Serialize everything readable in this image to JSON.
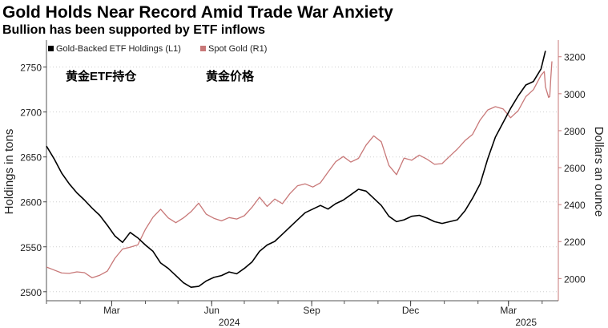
{
  "title": "Gold Holds Near Record Amid Trade War Anxiety",
  "subtitle": "Bullion has been supported by ETF inflows",
  "chart_data": {
    "type": "line",
    "title": "Gold Holds Near Record Amid Trade War Anxiety",
    "subtitle": "Bullion has been supported by ETF inflows",
    "ylabel_left": "Holdings in tons",
    "ylabel_right": "Dollars an ounce",
    "ylim_left": [
      2490,
      2780
    ],
    "ylim_right": [
      1880,
      3290
    ],
    "yticks_left": [
      2500,
      2550,
      2600,
      2650,
      2700,
      2750
    ],
    "yticks_right": [
      2000,
      2200,
      2400,
      2600,
      2800,
      3000,
      3200
    ],
    "xlim": [
      "2024-01-01",
      "2025-04-10"
    ],
    "xticks": [
      {
        "date": "2024-03-01",
        "label": "Mar"
      },
      {
        "date": "2024-06-01",
        "label": "Jun",
        "year": "2024"
      },
      {
        "date": "2024-09-01",
        "label": "Sep"
      },
      {
        "date": "2024-12-01",
        "label": "Dec"
      },
      {
        "date": "2025-03-01",
        "label": "Mar",
        "year": "2025"
      }
    ],
    "annotations": [
      "黄金ETF持仓",
      "黄金价格"
    ],
    "legend_position": "top-left",
    "series": [
      {
        "name": "Gold-Backed ETF Holdings (L1)",
        "axis": "left",
        "color": "#000000",
        "points": [
          [
            "2024-01-01",
            2662
          ],
          [
            "2024-01-08",
            2648
          ],
          [
            "2024-01-15",
            2632
          ],
          [
            "2024-01-22",
            2620
          ],
          [
            "2024-01-29",
            2610
          ],
          [
            "2024-02-05",
            2602
          ],
          [
            "2024-02-12",
            2593
          ],
          [
            "2024-02-19",
            2585
          ],
          [
            "2024-02-26",
            2574
          ],
          [
            "2024-03-04",
            2562
          ],
          [
            "2024-03-11",
            2555
          ],
          [
            "2024-03-18",
            2566
          ],
          [
            "2024-03-25",
            2560
          ],
          [
            "2024-04-01",
            2552
          ],
          [
            "2024-04-08",
            2545
          ],
          [
            "2024-04-15",
            2532
          ],
          [
            "2024-04-22",
            2526
          ],
          [
            "2024-04-29",
            2518
          ],
          [
            "2024-05-06",
            2510
          ],
          [
            "2024-05-13",
            2505
          ],
          [
            "2024-05-20",
            2506
          ],
          [
            "2024-05-27",
            2512
          ],
          [
            "2024-06-03",
            2516
          ],
          [
            "2024-06-10",
            2518
          ],
          [
            "2024-06-17",
            2522
          ],
          [
            "2024-06-24",
            2520
          ],
          [
            "2024-07-01",
            2526
          ],
          [
            "2024-07-08",
            2533
          ],
          [
            "2024-07-15",
            2545
          ],
          [
            "2024-07-22",
            2552
          ],
          [
            "2024-07-29",
            2556
          ],
          [
            "2024-08-05",
            2564
          ],
          [
            "2024-08-12",
            2572
          ],
          [
            "2024-08-19",
            2580
          ],
          [
            "2024-08-26",
            2588
          ],
          [
            "2024-09-02",
            2592
          ],
          [
            "2024-09-09",
            2596
          ],
          [
            "2024-09-16",
            2592
          ],
          [
            "2024-09-23",
            2598
          ],
          [
            "2024-09-30",
            2602
          ],
          [
            "2024-10-07",
            2608
          ],
          [
            "2024-10-14",
            2614
          ],
          [
            "2024-10-21",
            2612
          ],
          [
            "2024-10-28",
            2604
          ],
          [
            "2024-11-04",
            2596
          ],
          [
            "2024-11-11",
            2584
          ],
          [
            "2024-11-18",
            2578
          ],
          [
            "2024-11-25",
            2580
          ],
          [
            "2024-12-02",
            2584
          ],
          [
            "2024-12-09",
            2585
          ],
          [
            "2024-12-16",
            2582
          ],
          [
            "2024-12-23",
            2578
          ],
          [
            "2024-12-30",
            2576
          ],
          [
            "2025-01-06",
            2578
          ],
          [
            "2025-01-13",
            2580
          ],
          [
            "2025-01-20",
            2590
          ],
          [
            "2025-01-27",
            2604
          ],
          [
            "2025-02-03",
            2620
          ],
          [
            "2025-02-10",
            2648
          ],
          [
            "2025-02-17",
            2672
          ],
          [
            "2025-02-24",
            2688
          ],
          [
            "2025-03-03",
            2704
          ],
          [
            "2025-03-10",
            2718
          ],
          [
            "2025-03-17",
            2730
          ],
          [
            "2025-03-24",
            2734
          ],
          [
            "2025-03-31",
            2748
          ],
          [
            "2025-04-04",
            2768
          ]
        ]
      },
      {
        "name": "Spot Gold (R1)",
        "axis": "right",
        "color": "#c87878",
        "points": [
          [
            "2024-01-01",
            2062
          ],
          [
            "2024-01-08",
            2046
          ],
          [
            "2024-01-15",
            2030
          ],
          [
            "2024-01-22",
            2028
          ],
          [
            "2024-01-29",
            2036
          ],
          [
            "2024-02-05",
            2032
          ],
          [
            "2024-02-12",
            2004
          ],
          [
            "2024-02-19",
            2018
          ],
          [
            "2024-02-26",
            2040
          ],
          [
            "2024-03-04",
            2110
          ],
          [
            "2024-03-11",
            2160
          ],
          [
            "2024-03-18",
            2170
          ],
          [
            "2024-03-25",
            2182
          ],
          [
            "2024-04-01",
            2266
          ],
          [
            "2024-04-08",
            2332
          ],
          [
            "2024-04-15",
            2375
          ],
          [
            "2024-04-22",
            2328
          ],
          [
            "2024-04-29",
            2302
          ],
          [
            "2024-05-06",
            2328
          ],
          [
            "2024-05-13",
            2362
          ],
          [
            "2024-05-20",
            2408
          ],
          [
            "2024-05-27",
            2348
          ],
          [
            "2024-06-03",
            2326
          ],
          [
            "2024-06-10",
            2312
          ],
          [
            "2024-06-17",
            2330
          ],
          [
            "2024-06-24",
            2322
          ],
          [
            "2024-07-01",
            2340
          ],
          [
            "2024-07-08",
            2385
          ],
          [
            "2024-07-15",
            2440
          ],
          [
            "2024-07-22",
            2390
          ],
          [
            "2024-07-29",
            2430
          ],
          [
            "2024-08-05",
            2405
          ],
          [
            "2024-08-12",
            2460
          ],
          [
            "2024-08-19",
            2502
          ],
          [
            "2024-08-26",
            2512
          ],
          [
            "2024-09-02",
            2495
          ],
          [
            "2024-09-09",
            2518
          ],
          [
            "2024-09-16",
            2576
          ],
          [
            "2024-09-23",
            2632
          ],
          [
            "2024-09-30",
            2660
          ],
          [
            "2024-10-07",
            2630
          ],
          [
            "2024-10-14",
            2650
          ],
          [
            "2024-10-21",
            2722
          ],
          [
            "2024-10-28",
            2772
          ],
          [
            "2024-11-04",
            2740
          ],
          [
            "2024-11-11",
            2612
          ],
          [
            "2024-11-18",
            2562
          ],
          [
            "2024-11-25",
            2652
          ],
          [
            "2024-12-02",
            2640
          ],
          [
            "2024-12-09",
            2668
          ],
          [
            "2024-12-16",
            2646
          ],
          [
            "2024-12-23",
            2618
          ],
          [
            "2024-12-30",
            2622
          ],
          [
            "2025-01-06",
            2662
          ],
          [
            "2025-01-13",
            2700
          ],
          [
            "2025-01-20",
            2746
          ],
          [
            "2025-01-27",
            2780
          ],
          [
            "2025-02-03",
            2858
          ],
          [
            "2025-02-10",
            2912
          ],
          [
            "2025-02-17",
            2930
          ],
          [
            "2025-02-24",
            2918
          ],
          [
            "2025-03-03",
            2870
          ],
          [
            "2025-03-10",
            2908
          ],
          [
            "2025-03-17",
            2984
          ],
          [
            "2025-03-24",
            3022
          ],
          [
            "2025-03-31",
            3100
          ],
          [
            "2025-04-03",
            3120
          ],
          [
            "2025-04-04",
            3037
          ],
          [
            "2025-04-07",
            2980
          ],
          [
            "2025-04-08",
            2985
          ],
          [
            "2025-04-09",
            3085
          ],
          [
            "2025-04-10",
            3175
          ]
        ]
      }
    ]
  }
}
